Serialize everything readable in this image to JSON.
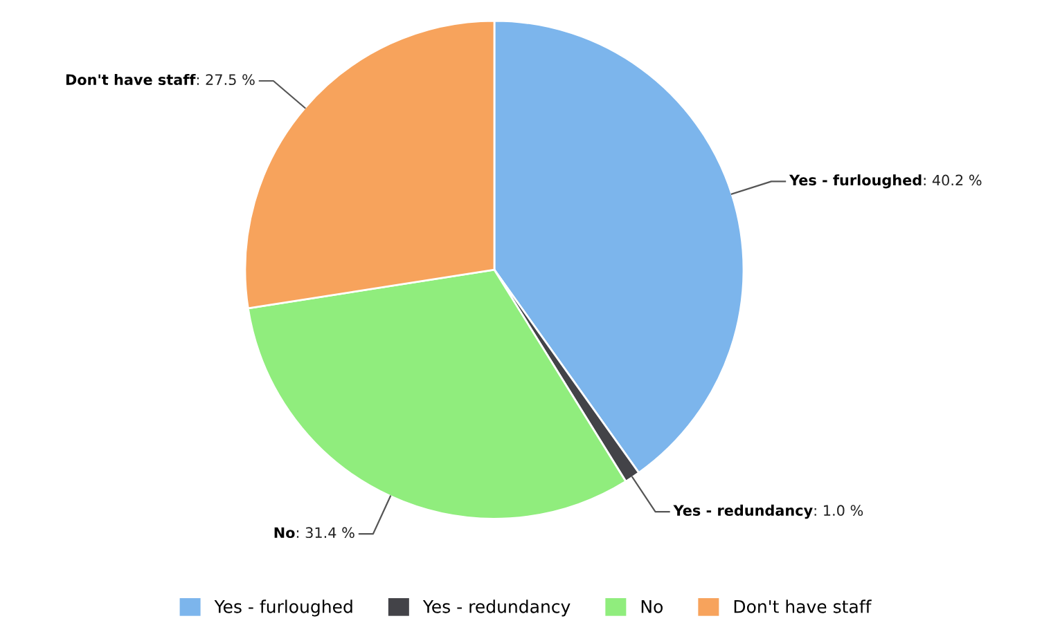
{
  "chart_data": {
    "type": "pie",
    "categories": [
      "Yes - furloughed",
      "Yes - redundancy",
      "No",
      "Don't have staff"
    ],
    "values": [
      40.2,
      1.0,
      31.4,
      27.5
    ],
    "colors": [
      "#7cb5ec",
      "#434348",
      "#90ed7d",
      "#f7a35c"
    ],
    "value_labels": [
      ": 40.2 %",
      ": 1.0 %",
      ": 31.4 %",
      ": 27.5 %"
    ],
    "legend": "bottom"
  }
}
